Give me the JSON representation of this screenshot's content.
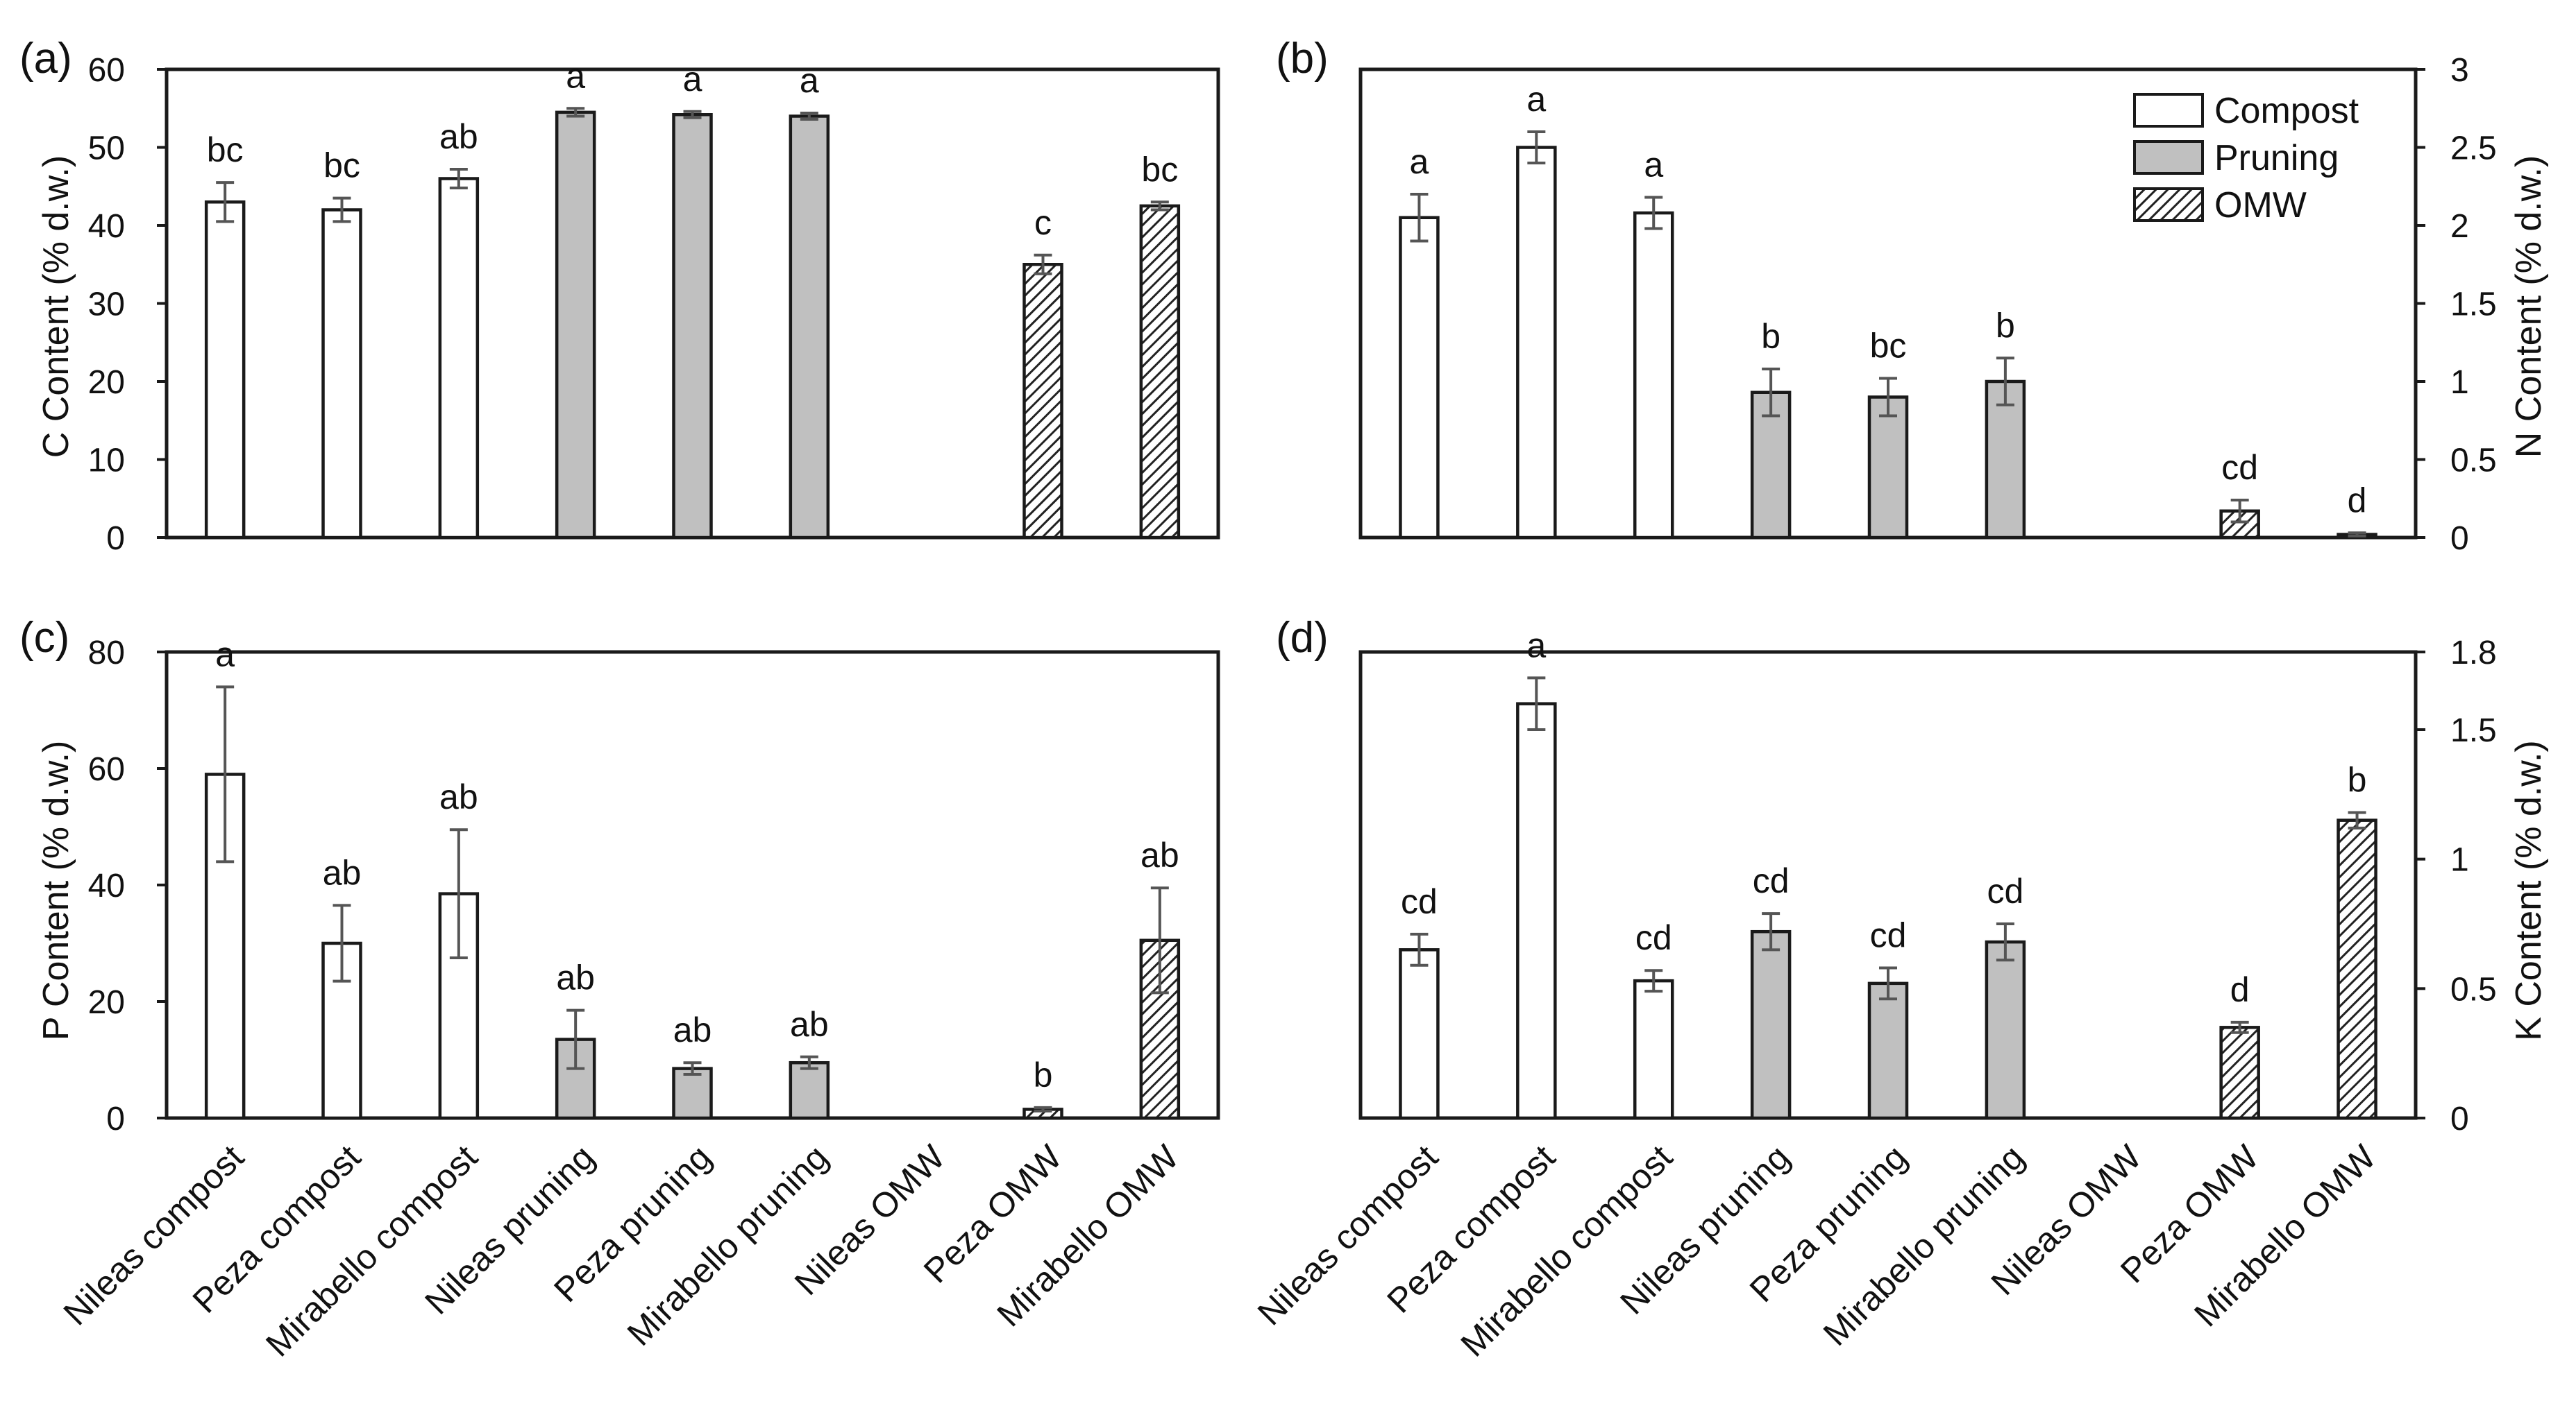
{
  "colors": {
    "compost": "#ffffff",
    "pruning": "#c0c0c0",
    "omw_pattern": "hatched",
    "axis": "#1a1a1a",
    "error_bar": "#555555"
  },
  "legend": {
    "entries": [
      {
        "name": "Compost",
        "style": "compost"
      },
      {
        "name": "Pruning",
        "style": "pruning"
      },
      {
        "name": "OMW",
        "style": "omw"
      }
    ]
  },
  "chart_data": [
    {
      "panel": "(a)",
      "type": "bar",
      "ylabel": "C Content (% d.w.)",
      "ylim": [
        0,
        60
      ],
      "yticks": [
        0,
        10,
        20,
        30,
        40,
        50,
        60
      ],
      "ytick_labels": [
        "0",
        "10",
        "20",
        "30",
        "40",
        "50",
        "60"
      ],
      "yaxis_side": "left",
      "categories": [
        "Nileas compost",
        "Peza compost",
        "Mirabello compost",
        "Nileas pruning",
        "Peza pruning",
        "Mirabello pruning",
        "Nileas OMW",
        "Peza OMW",
        "Mirabello OMW"
      ],
      "groups": [
        "compost",
        "compost",
        "compost",
        "pruning",
        "pruning",
        "pruning",
        "omw",
        "omw",
        "omw"
      ],
      "values": [
        43,
        42,
        46,
        54.5,
        54.2,
        54,
        null,
        35,
        42.5
      ],
      "errors": [
        2.5,
        1.5,
        1.2,
        0.5,
        0.4,
        0.4,
        null,
        1.2,
        0.5
      ],
      "letters": [
        "bc",
        "bc",
        "ab",
        "a",
        "a",
        "a",
        "",
        "c",
        "bc"
      ],
      "show_xticks": false
    },
    {
      "panel": "(b)",
      "type": "bar",
      "ylabel": "N Content (% d.w.)",
      "ylim": [
        0,
        3
      ],
      "yticks": [
        0,
        0.5,
        1,
        1.5,
        2,
        2.5,
        3
      ],
      "ytick_labels": [
        "0",
        "0.5",
        "1",
        "1.5",
        "2",
        "2.5",
        "3"
      ],
      "yaxis_side": "right",
      "categories": [
        "Nileas compost",
        "Peza compost",
        "Mirabello compost",
        "Nileas pruning",
        "Peza pruning",
        "Mirabello pruning",
        "Nileas OMW",
        "Peza OMW",
        "Mirabello OMW"
      ],
      "groups": [
        "compost",
        "compost",
        "compost",
        "pruning",
        "pruning",
        "pruning",
        "omw",
        "omw",
        "omw"
      ],
      "values": [
        2.05,
        2.5,
        2.08,
        0.93,
        0.9,
        1.0,
        null,
        0.17,
        0.02
      ],
      "errors": [
        0.15,
        0.1,
        0.1,
        0.15,
        0.12,
        0.15,
        null,
        0.07,
        0.01
      ],
      "letters": [
        "a",
        "a",
        "a",
        "b",
        "bc",
        "b",
        "",
        "cd",
        "d"
      ],
      "show_legend": true,
      "show_xticks": false
    },
    {
      "panel": "(c)",
      "type": "bar",
      "ylabel": "P Content (% d.w.)",
      "ylim": [
        0,
        80
      ],
      "yticks": [
        0,
        20,
        40,
        60,
        80
      ],
      "ytick_labels": [
        "0",
        "20",
        "40",
        "60",
        "80"
      ],
      "yaxis_side": "left",
      "categories": [
        "Nileas compost",
        "Peza compost",
        "Mirabello compost",
        "Nileas pruning",
        "Peza pruning",
        "Mirabello pruning",
        "Nileas OMW",
        "Peza OMW",
        "Mirabello OMW"
      ],
      "groups": [
        "compost",
        "compost",
        "compost",
        "pruning",
        "pruning",
        "pruning",
        "omw",
        "omw",
        "omw"
      ],
      "values": [
        59,
        30,
        38.5,
        13.5,
        8.5,
        9.5,
        null,
        1.5,
        30.5
      ],
      "errors": [
        15,
        6.5,
        11,
        5,
        1,
        1,
        null,
        0.3,
        9
      ],
      "letters": [
        "a",
        "ab",
        "ab",
        "ab",
        "ab",
        "ab",
        "",
        "b",
        "ab"
      ],
      "show_xticks": true
    },
    {
      "panel": "(d)",
      "type": "bar",
      "ylabel": "K Content (% d.w.)",
      "ylim": [
        0,
        1.8
      ],
      "yticks": [
        0,
        0.5,
        1,
        1.5,
        1.8
      ],
      "ytick_labels": [
        "0",
        "0.5",
        "1",
        "1.5",
        "1.8"
      ],
      "yaxis_side": "right",
      "categories": [
        "Nileas compost",
        "Peza compost",
        "Mirabello compost",
        "Nileas pruning",
        "Peza pruning",
        "Mirabello pruning",
        "Nileas OMW",
        "Peza OMW",
        "Mirabello OMW"
      ],
      "groups": [
        "compost",
        "compost",
        "compost",
        "pruning",
        "pruning",
        "pruning",
        "omw",
        "omw",
        "omw"
      ],
      "values": [
        0.65,
        1.6,
        0.53,
        0.72,
        0.52,
        0.68,
        null,
        0.35,
        1.15
      ],
      "errors": [
        0.06,
        0.1,
        0.04,
        0.07,
        0.06,
        0.07,
        null,
        0.02,
        0.03
      ],
      "letters": [
        "cd",
        "a",
        "cd",
        "cd",
        "cd",
        "cd",
        "",
        "d",
        "b"
      ],
      "show_xticks": true
    }
  ]
}
